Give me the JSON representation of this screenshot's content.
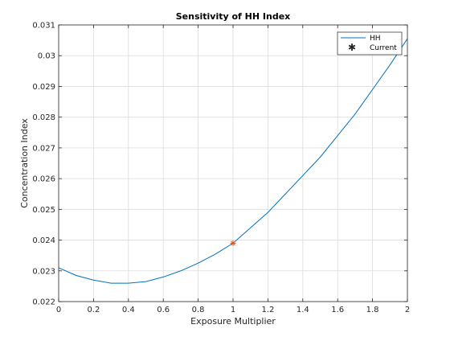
{
  "chart_data": {
    "type": "line",
    "title": "Sensitivity of HH Index",
    "xlabel": "Exposure Multiplier",
    "ylabel": "Concentration Index",
    "xlim": [
      0,
      2
    ],
    "ylim": [
      0.022,
      0.031
    ],
    "x_ticks": [
      0,
      0.2,
      0.4,
      0.6,
      0.8,
      1,
      1.2,
      1.4,
      1.6,
      1.8,
      2
    ],
    "x_tick_labels": [
      "0",
      "0.2",
      "0.4",
      "0.6",
      "0.8",
      "1",
      "1.2",
      "1.4",
      "1.6",
      "1.8",
      "2"
    ],
    "y_ticks": [
      0.022,
      0.023,
      0.024,
      0.025,
      0.026,
      0.027,
      0.028,
      0.029,
      0.03,
      0.031
    ],
    "y_tick_labels": [
      "0.022",
      "0.023",
      "0.024",
      "0.025",
      "0.026",
      "0.027",
      "0.028",
      "0.029",
      "0.03",
      "0.031"
    ],
    "grid": true,
    "legend_position": "top-right",
    "series": [
      {
        "name": "HH",
        "kind": "line",
        "color": "#0072BD",
        "x": [
          0,
          0.1,
          0.2,
          0.3,
          0.4,
          0.5,
          0.6,
          0.7,
          0.8,
          0.9,
          1.0,
          1.1,
          1.2,
          1.3,
          1.4,
          1.5,
          1.6,
          1.7,
          1.8,
          1.9,
          2.0
        ],
        "y": [
          0.0231,
          0.02285,
          0.0227,
          0.0226,
          0.0226,
          0.02265,
          0.0228,
          0.023,
          0.02325,
          0.02355,
          0.0239,
          0.0244,
          0.0249,
          0.0255,
          0.0261,
          0.0267,
          0.0274,
          0.0281,
          0.0289,
          0.0297,
          0.03055
        ]
      },
      {
        "name": "Current",
        "kind": "marker",
        "marker": "*",
        "color": "#D95319",
        "x": [
          1
        ],
        "y": [
          0.0239
        ]
      }
    ]
  }
}
